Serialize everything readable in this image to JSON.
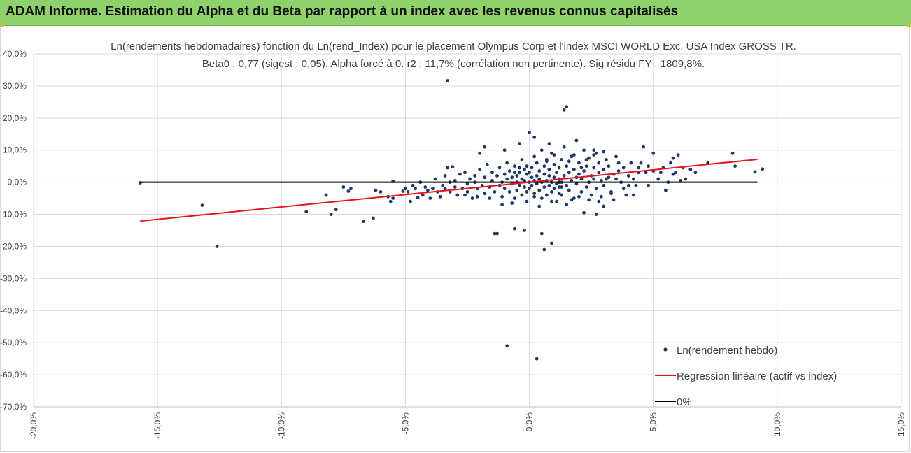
{
  "header": {
    "title": "ADAM Informe. Estimation du Alpha et du Beta par rapport à un index avec les revenus connus capitalisés"
  },
  "chart_data": {
    "type": "scatter",
    "title": "Ln(rendements hebdomadaires) fonction du Ln(rend_Index) pour le placement Olympus Corp et l'index MSCI WORLD Exc. USA Index GROSS TR.",
    "subtitle": "Beta0 : 0,77 (sigest : 0,05). Alpha forcé à 0. r2 : 11,7% (corrélation non pertinente). Sig résidu FY : 1809,8%.",
    "xlim": [
      -0.2,
      0.15
    ],
    "ylim": [
      -0.7,
      0.4
    ],
    "x_ticks": [
      -0.2,
      -0.15,
      -0.1,
      -0.05,
      0.0,
      0.05,
      0.1,
      0.15
    ],
    "x_tick_labels": [
      "-20,0%",
      "-15,0%",
      "-10,0%",
      "-5,0%",
      "0,0%",
      "5,0%",
      "10,0%",
      "15,0%"
    ],
    "y_ticks": [
      0.4,
      0.3,
      0.2,
      0.1,
      0.0,
      -0.1,
      -0.2,
      -0.3,
      -0.4,
      -0.5,
      -0.6,
      -0.7
    ],
    "y_tick_labels": [
      "40,0%",
      "30,0%",
      "20,0%",
      "10,0%",
      "0,0%",
      "-10,0%",
      "-20,0%",
      "-30,0%",
      "-40,0%",
      "-50,0%",
      "-60,0%",
      "-70,0%"
    ],
    "grid": "vertical and horizontal",
    "legend_position": "bottom-right",
    "colors": {
      "points": "#1f3864",
      "regression": "#e8141b",
      "zero": "#000000",
      "grid": "#d9d9d9"
    },
    "series": [
      {
        "name": "Ln(rendement hebdo)",
        "kind": "scatter",
        "points": [
          [
            -0.157,
            -0.002
          ],
          [
            -0.132,
            -0.072
          ],
          [
            -0.126,
            -0.2
          ],
          [
            -0.09,
            -0.092
          ],
          [
            -0.082,
            -0.04
          ],
          [
            -0.08,
            -0.1
          ],
          [
            -0.078,
            -0.085
          ],
          [
            -0.075,
            -0.015
          ],
          [
            -0.073,
            -0.028
          ],
          [
            -0.072,
            -0.02
          ],
          [
            -0.067,
            -0.122
          ],
          [
            -0.063,
            -0.112
          ],
          [
            -0.062,
            -0.025
          ],
          [
            -0.06,
            -0.03
          ],
          [
            -0.057,
            -0.045
          ],
          [
            -0.056,
            -0.06
          ],
          [
            -0.055,
            -0.05
          ],
          [
            -0.055,
            0.003
          ],
          [
            -0.051,
            -0.028
          ],
          [
            -0.05,
            -0.02
          ],
          [
            -0.049,
            -0.03
          ],
          [
            -0.048,
            -0.06
          ],
          [
            -0.047,
            -0.01
          ],
          [
            -0.046,
            -0.02
          ],
          [
            -0.045,
            -0.048
          ],
          [
            -0.044,
            0.0
          ],
          [
            -0.043,
            -0.04
          ],
          [
            -0.042,
            -0.015
          ],
          [
            -0.041,
            -0.025
          ],
          [
            -0.04,
            -0.05
          ],
          [
            -0.039,
            -0.02
          ],
          [
            -0.038,
            0.01
          ],
          [
            -0.037,
            -0.03
          ],
          [
            -0.036,
            -0.045
          ],
          [
            -0.035,
            -0.01
          ],
          [
            -0.034,
            0.02
          ],
          [
            -0.034,
            -0.02
          ],
          [
            -0.033,
            0.045
          ],
          [
            -0.032,
            0.0
          ],
          [
            -0.032,
            -0.03
          ],
          [
            -0.031,
            0.048
          ],
          [
            -0.03,
            -0.015
          ],
          [
            -0.03,
            0.005
          ],
          [
            -0.029,
            -0.04
          ],
          [
            -0.028,
            0.025
          ],
          [
            -0.027,
            -0.02
          ],
          [
            -0.026,
            0.03
          ],
          [
            -0.025,
            -0.005
          ],
          [
            -0.025,
            -0.03
          ],
          [
            -0.024,
            0.01
          ],
          [
            -0.033,
            0.316
          ],
          [
            -0.023,
            -0.05
          ],
          [
            -0.022,
            0.0
          ],
          [
            -0.022,
            0.02
          ],
          [
            -0.021,
            -0.02
          ],
          [
            -0.02,
            0.04
          ],
          [
            -0.019,
            -0.01
          ],
          [
            -0.018,
            0.015
          ],
          [
            -0.018,
            -0.035
          ],
          [
            -0.017,
            0.055
          ],
          [
            -0.016,
            -0.015
          ],
          [
            -0.015,
            0.005
          ],
          [
            -0.015,
            0.03
          ],
          [
            -0.014,
            -0.03
          ],
          [
            -0.014,
            -0.16
          ],
          [
            -0.013,
            0.02
          ],
          [
            -0.012,
            -0.01
          ],
          [
            -0.012,
            0.045
          ],
          [
            -0.011,
            0.0
          ],
          [
            -0.011,
            -0.045
          ],
          [
            -0.01,
            0.025
          ],
          [
            -0.01,
            -0.02
          ],
          [
            -0.009,
            0.06
          ],
          [
            -0.009,
            0.01
          ],
          [
            -0.008,
            -0.03
          ],
          [
            -0.008,
            0.035
          ],
          [
            -0.007,
            -0.005
          ],
          [
            -0.007,
            0.015
          ],
          [
            -0.006,
            -0.05
          ],
          [
            -0.006,
            0.05
          ],
          [
            -0.005,
            0.0
          ],
          [
            -0.005,
            0.02
          ],
          [
            -0.005,
            -0.025
          ],
          [
            -0.004,
            0.03
          ],
          [
            -0.004,
            -0.01
          ],
          [
            -0.003,
            0.07
          ],
          [
            -0.003,
            -0.04
          ],
          [
            -0.003,
            0.01
          ],
          [
            -0.002,
            0.04
          ],
          [
            -0.002,
            -0.015
          ],
          [
            -0.002,
            0.005
          ],
          [
            -0.001,
            0.025
          ],
          [
            -0.001,
            -0.03
          ],
          [
            -0.001,
            0.05
          ],
          [
            0.0,
            0.0
          ],
          [
            0.0,
            -0.02
          ],
          [
            0.0,
            0.03
          ],
          [
            0.0,
            0.155
          ],
          [
            0.001,
            0.015
          ],
          [
            0.001,
            -0.01
          ],
          [
            0.001,
            0.045
          ],
          [
            0.002,
            0.005
          ],
          [
            0.002,
            -0.035
          ],
          [
            0.002,
            0.08
          ],
          [
            0.003,
            0.02
          ],
          [
            0.003,
            -0.005
          ],
          [
            0.003,
            0.06
          ],
          [
            0.004,
            -0.025
          ],
          [
            0.004,
            0.01
          ],
          [
            0.004,
            0.035
          ],
          [
            0.005,
            -0.05
          ],
          [
            0.005,
            0.0
          ],
          [
            0.005,
            0.1
          ],
          [
            0.006,
            0.025
          ],
          [
            0.006,
            -0.015
          ],
          [
            0.006,
            0.05
          ],
          [
            0.007,
            0.005
          ],
          [
            0.007,
            -0.04
          ],
          [
            0.007,
            0.07
          ],
          [
            0.008,
            0.02
          ],
          [
            0.008,
            -0.01
          ],
          [
            0.008,
            0.04
          ],
          [
            0.009,
            0.0
          ],
          [
            0.009,
            -0.03
          ],
          [
            0.009,
            0.09
          ],
          [
            0.01,
            0.015
          ],
          [
            0.01,
            -0.02
          ],
          [
            0.01,
            0.055
          ],
          [
            0.011,
            0.03
          ],
          [
            0.011,
            -0.005
          ],
          [
            0.011,
            -0.06
          ],
          [
            0.012,
            0.01
          ],
          [
            0.012,
            0.045
          ],
          [
            0.012,
            -0.015
          ],
          [
            0.013,
            0.07
          ],
          [
            0.013,
            0.0
          ],
          [
            0.013,
            -0.04
          ],
          [
            0.014,
            0.225
          ],
          [
            0.014,
            0.02
          ],
          [
            0.015,
            0.235
          ],
          [
            0.015,
            -0.01
          ],
          [
            0.015,
            0.05
          ],
          [
            0.016,
            0.03
          ],
          [
            0.016,
            -0.025
          ],
          [
            0.017,
            0.08
          ],
          [
            0.017,
            0.005
          ],
          [
            0.018,
            -0.05
          ],
          [
            0.018,
            0.04
          ],
          [
            0.019,
            0.015
          ],
          [
            0.019,
            -0.005
          ],
          [
            0.02,
            0.06
          ],
          [
            0.02,
            0.025
          ],
          [
            0.021,
            -0.03
          ],
          [
            0.021,
            0.01
          ],
          [
            0.022,
            0.1
          ],
          [
            0.022,
            0.035
          ],
          [
            0.023,
            -0.015
          ],
          [
            0.023,
            0.05
          ],
          [
            0.024,
            0.0
          ],
          [
            0.024,
            0.075
          ],
          [
            0.025,
            0.02
          ],
          [
            0.025,
            -0.04
          ],
          [
            0.026,
            0.045
          ],
          [
            0.026,
            0.01
          ],
          [
            0.027,
            0.09
          ],
          [
            0.027,
            -0.02
          ],
          [
            0.028,
            0.03
          ],
          [
            0.028,
            0.06
          ],
          [
            0.029,
            0.005
          ],
          [
            0.03,
            0.04
          ],
          [
            0.03,
            -0.01
          ],
          [
            0.031,
            0.07
          ],
          [
            0.032,
            0.015
          ],
          [
            0.032,
            0.05
          ],
          [
            0.033,
            -0.03
          ],
          [
            0.034,
            0.025
          ],
          [
            0.035,
            0.08
          ],
          [
            0.036,
            0.035
          ],
          [
            0.037,
            0.0
          ],
          [
            0.038,
            0.045
          ],
          [
            0.04,
            0.02
          ],
          [
            0.041,
            0.06
          ],
          [
            0.042,
            -0.04
          ],
          [
            0.044,
            0.03
          ],
          [
            0.046,
            0.11
          ],
          [
            0.048,
            0.05
          ],
          [
            0.05,
            0.09
          ],
          [
            0.052,
            0.01
          ],
          [
            0.053,
            0.03
          ],
          [
            0.055,
            -0.025
          ],
          [
            0.057,
            0.06
          ],
          [
            0.058,
            0.075
          ],
          [
            0.059,
            0.03
          ],
          [
            0.06,
            0.085
          ],
          [
            0.062,
            0.045
          ],
          [
            0.063,
            0.01
          ],
          [
            0.065,
            0.04
          ],
          [
            0.067,
            0.03
          ],
          [
            0.072,
            0.06
          ],
          [
            0.082,
            0.09
          ],
          [
            0.083,
            0.05
          ],
          [
            0.091,
            0.032
          ],
          [
            0.094,
            0.041
          ],
          [
            0.013,
            -0.015
          ],
          [
            0.012,
            0.0
          ],
          [
            -0.009,
            -0.51
          ],
          [
            0.003,
            -0.55
          ],
          [
            0.005,
            -0.16
          ],
          [
            -0.002,
            -0.15
          ],
          [
            0.009,
            -0.19
          ],
          [
            0.006,
            -0.21
          ],
          [
            -0.006,
            -0.145
          ],
          [
            -0.013,
            -0.16
          ],
          [
            0.027,
            -0.1
          ],
          [
            0.022,
            -0.095
          ],
          [
            0.03,
            -0.075
          ],
          [
            0.034,
            -0.055
          ],
          [
            0.039,
            -0.04
          ],
          [
            0.043,
            -0.01
          ],
          [
            0.035,
            0.01
          ],
          [
            0.028,
            -0.06
          ],
          [
            0.031,
            0.01
          ],
          [
            0.036,
            0.06
          ],
          [
            0.026,
            0.085
          ],
          [
            0.019,
            0.13
          ],
          [
            0.014,
            0.11
          ],
          [
            0.008,
            0.12
          ],
          [
            0.002,
            0.14
          ],
          [
            -0.004,
            0.12
          ],
          [
            -0.01,
            0.1
          ],
          [
            -0.018,
            0.11
          ],
          [
            -0.02,
            0.09
          ],
          [
            0.058,
            0.025
          ],
          [
            0.061,
            0.005
          ],
          [
            0.05,
            0.035
          ],
          [
            0.048,
            -0.01
          ],
          [
            0.045,
            0.06
          ],
          [
            0.047,
            0.03
          ],
          [
            0.054,
            0.045
          ],
          [
            0.056,
            0.0
          ],
          [
            -0.006,
            0.03
          ],
          [
            -0.004,
            0.045
          ],
          [
            0.007,
            0.065
          ],
          [
            0.01,
            0.085
          ],
          [
            0.016,
            0.065
          ],
          [
            0.018,
            0.085
          ],
          [
            0.023,
            0.07
          ],
          [
            0.021,
            0.045
          ],
          [
            0.017,
            -0.055
          ],
          [
            0.015,
            -0.07
          ],
          [
            0.009,
            -0.06
          ],
          [
            0.004,
            -0.075
          ],
          [
            -0.001,
            -0.06
          ],
          [
            -0.007,
            -0.065
          ],
          [
            -0.011,
            -0.07
          ],
          [
            -0.016,
            -0.05
          ],
          [
            -0.021,
            -0.045
          ],
          [
            -0.026,
            -0.04
          ],
          [
            0.002,
            -0.045
          ],
          [
            0.012,
            -0.035
          ],
          [
            0.02,
            -0.045
          ],
          [
            0.024,
            -0.055
          ],
          [
            0.029,
            -0.045
          ],
          [
            0.033,
            -0.035
          ],
          [
            0.038,
            -0.02
          ],
          [
            0.04,
            -0.01
          ],
          [
            0.042,
            0.01
          ],
          [
            0.044,
            0.045
          ],
          [
            0.026,
            0.1
          ],
          [
            0.03,
            0.095
          ]
        ]
      },
      {
        "name": "Regression linéaire (actif vs index)",
        "kind": "line",
        "points": [
          [
            -0.157,
            -0.121
          ],
          [
            0.092,
            0.071
          ]
        ]
      },
      {
        "name": "0%",
        "kind": "line",
        "points": [
          [
            -0.157,
            0.0
          ],
          [
            0.092,
            0.0
          ]
        ]
      }
    ]
  }
}
